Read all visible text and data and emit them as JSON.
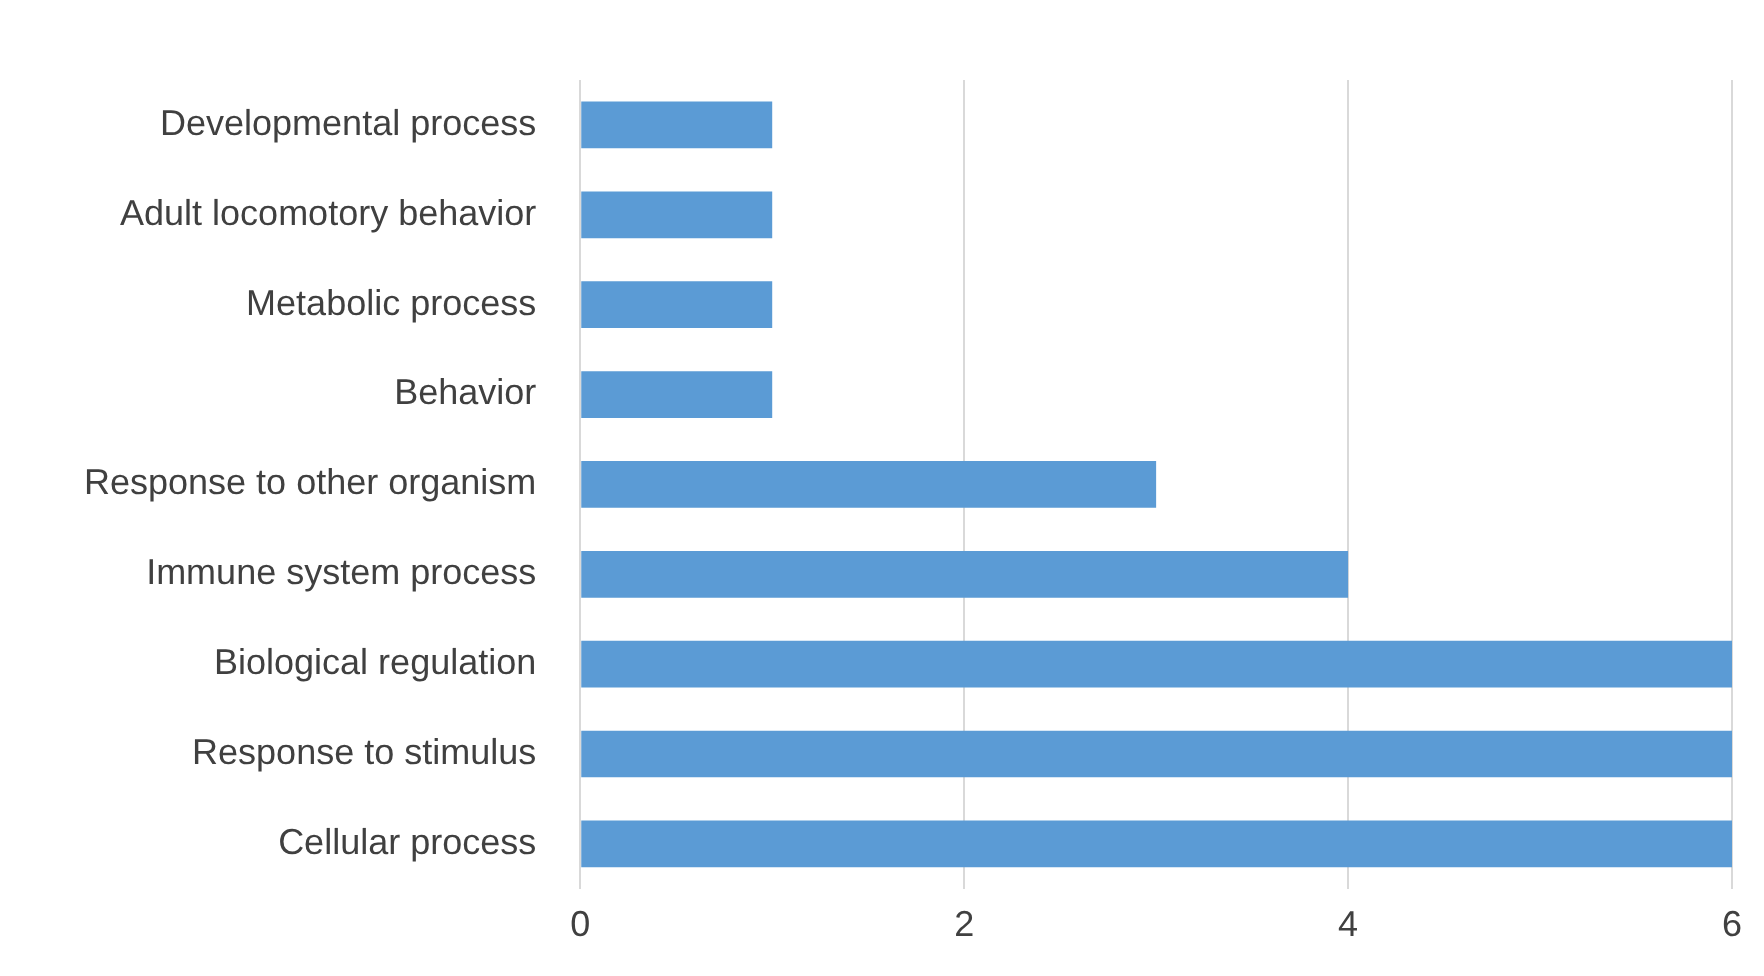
{
  "chart_data": {
    "type": "bar",
    "orientation": "horizontal",
    "categories": [
      "Developmental process",
      "Adult locomotory behavior",
      "Metabolic process",
      "Behavior",
      "Response to other organism",
      "Immune system process",
      "Biological regulation",
      "Response to stimulus",
      "Cellular process"
    ],
    "values": [
      1,
      1,
      1,
      1,
      3,
      4,
      6,
      6,
      6
    ],
    "color": "#5b9bd5",
    "xlim": [
      0,
      6
    ],
    "xticks": [
      0,
      2,
      4,
      6
    ],
    "grid": "x"
  }
}
